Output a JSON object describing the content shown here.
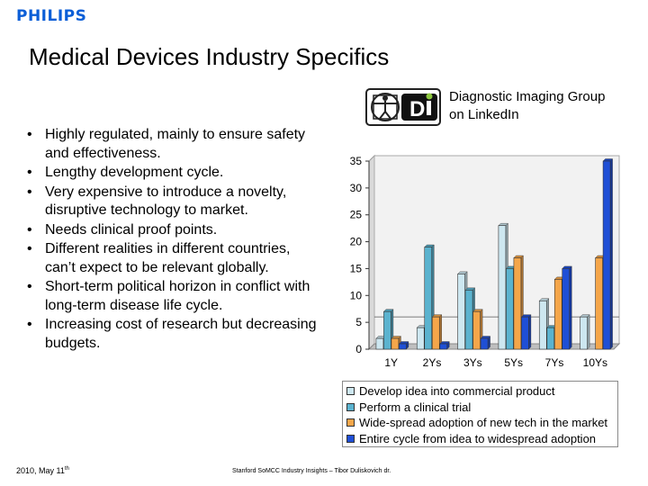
{
  "header": {
    "brand": "PHILIPS",
    "title": "Medical Devices Industry Specifics"
  },
  "logo": {
    "icon": "vitruvian-man-di-logo",
    "caption_line1": "Diagnostic Imaging Group",
    "caption_line2": "on LinkedIn"
  },
  "bullets": [
    "Highly regulated, mainly to ensure safety and effectiveness.",
    "Lengthy development cycle.",
    "Very expensive to introduce a novelty, disruptive technology to market.",
    "Needs clinical proof points.",
    "Different realities in different countries, can’t expect to be relevant globally.",
    "Short-term political horizon in conflict with long-term disease life cycle.",
    "Increasing cost of research but decreasing budgets."
  ],
  "footer": {
    "date": "2010, May 11",
    "date_sup": "th",
    "source": "Stanford SoMCC Industry Insights – Tibor Duliskovich dr."
  },
  "chart_data": {
    "type": "bar",
    "categories": [
      "1Y",
      "2Ys",
      "3Ys",
      "5Ys",
      "7Ys",
      "10Ys"
    ],
    "ylim": [
      0,
      35
    ],
    "yticks": [
      0,
      5,
      10,
      15,
      20,
      25,
      30,
      35
    ],
    "grid": false,
    "legend_position": "bottom",
    "series": [
      {
        "name": "Develop idea into commercial product",
        "color": "#cde7f0",
        "values": [
          2,
          4,
          14,
          23,
          9,
          6
        ]
      },
      {
        "name": "Perform a clinical trial",
        "color": "#5bb3cf",
        "values": [
          7,
          19,
          11,
          15,
          4,
          0
        ]
      },
      {
        "name": "Wide-spread adoption of new tech in the market",
        "color": "#f5a64a",
        "values": [
          2,
          6,
          7,
          17,
          13,
          17
        ]
      },
      {
        "name": "Entire cycle from idea to widespread adoption",
        "color": "#1f4fd6",
        "values": [
          1,
          1,
          2,
          6,
          15,
          35
        ]
      }
    ]
  }
}
